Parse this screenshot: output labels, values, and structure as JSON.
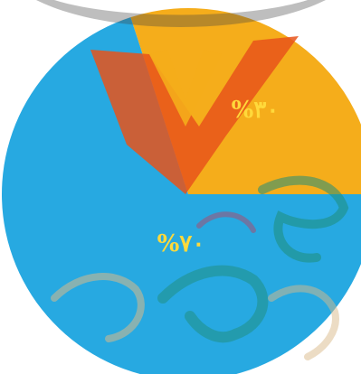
{
  "chart_data": {
    "type": "pie",
    "slices": [
      {
        "label": "%٣٠",
        "value": 30,
        "color": "#f5ad1b",
        "label_color": "#ffd93b"
      },
      {
        "label": "%٧٠",
        "value": 70,
        "color": "#27a9e1",
        "label_color": "#ffd93b"
      }
    ],
    "start_angle_deg": 0,
    "direction": "counterclockwise",
    "legend": "none"
  },
  "watermark": {
    "colors": {
      "orange": "#e8541a",
      "dark_orange": "#d9461b",
      "yellow": "#f7c23a",
      "teal": "#1f8e7a",
      "magenta": "#c23a5c",
      "tan": "#d9b98a"
    }
  }
}
